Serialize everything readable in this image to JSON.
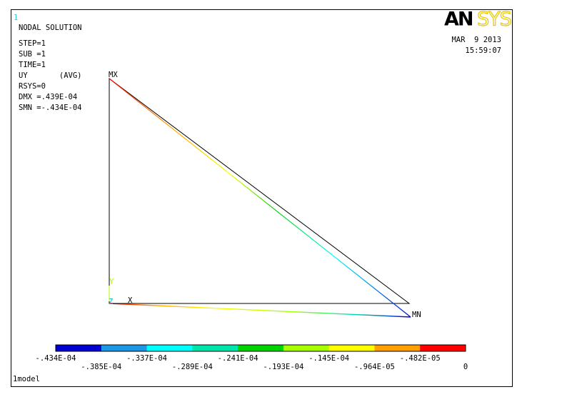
{
  "window_number": "1",
  "info": [
    "NODAL SOLUTION",
    "STEP=1",
    "SUB =1",
    "TIME=1",
    "UY       (AVG)",
    "RSYS=0",
    "DMX =.439E-04",
    "SMN =-.434E-04"
  ],
  "logo": [
    "AN",
    "SYS"
  ],
  "date": "MAR  9 2013",
  "time": "15:59:07",
  "max_label": "MX",
  "min_label": "MN",
  "axes": {
    "x": "X",
    "y": "Y",
    "z": "Z"
  },
  "legend": {
    "labels": [
      "-.434E-04",
      "-.385E-04",
      "-.337E-04",
      "-.289E-04",
      "-.241E-04",
      "-.193E-04",
      "-.145E-04",
      "-.964E-05",
      "-.482E-05",
      "0"
    ],
    "colors": [
      "#0000d0",
      "#1e96e6",
      "#00ffff",
      "#00e6aa",
      "#00d200",
      "#a8ff00",
      "#ffff00",
      "#ffa000",
      "#ff0000"
    ]
  },
  "footer": "1model"
}
